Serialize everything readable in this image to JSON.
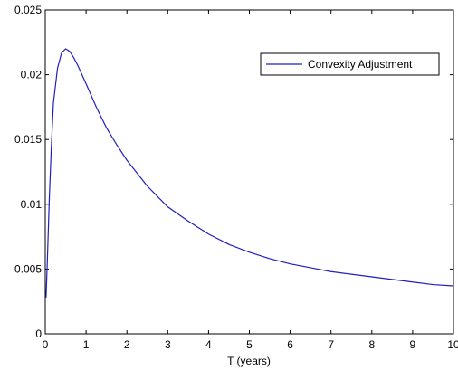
{
  "chart_data": {
    "type": "line",
    "title": "",
    "xlabel": "T (years)",
    "ylabel": "",
    "xlim": [
      0,
      10
    ],
    "ylim": [
      0,
      0.025
    ],
    "x_ticks": [
      "0",
      "1",
      "2",
      "3",
      "4",
      "5",
      "6",
      "7",
      "8",
      "9",
      "10"
    ],
    "y_ticks": [
      "0",
      "0.005",
      "0.01",
      "0.015",
      "0.02",
      "0.025"
    ],
    "grid": false,
    "legend_position": "top-right",
    "series": [
      {
        "name": "Convexity Adjustment",
        "color": "#1f1fbf",
        "x": [
          0.02,
          0.05,
          0.1,
          0.15,
          0.2,
          0.3,
          0.4,
          0.5,
          0.6,
          0.7,
          0.8,
          1.0,
          1.25,
          1.5,
          1.75,
          2.0,
          2.5,
          3.0,
          3.5,
          4.0,
          4.5,
          5.0,
          5.5,
          6.0,
          6.5,
          7.0,
          7.5,
          8.0,
          8.5,
          9.0,
          9.5,
          10.0
        ],
        "y": [
          0.0028,
          0.0055,
          0.0105,
          0.0145,
          0.0178,
          0.0205,
          0.0217,
          0.022,
          0.0218,
          0.0213,
          0.0207,
          0.0193,
          0.0175,
          0.0159,
          0.0146,
          0.0134,
          0.0114,
          0.0098,
          0.0087,
          0.0077,
          0.0069,
          0.0063,
          0.0058,
          0.0054,
          0.0051,
          0.0048,
          0.0046,
          0.0044,
          0.0042,
          0.004,
          0.0038,
          0.0037
        ]
      }
    ]
  }
}
